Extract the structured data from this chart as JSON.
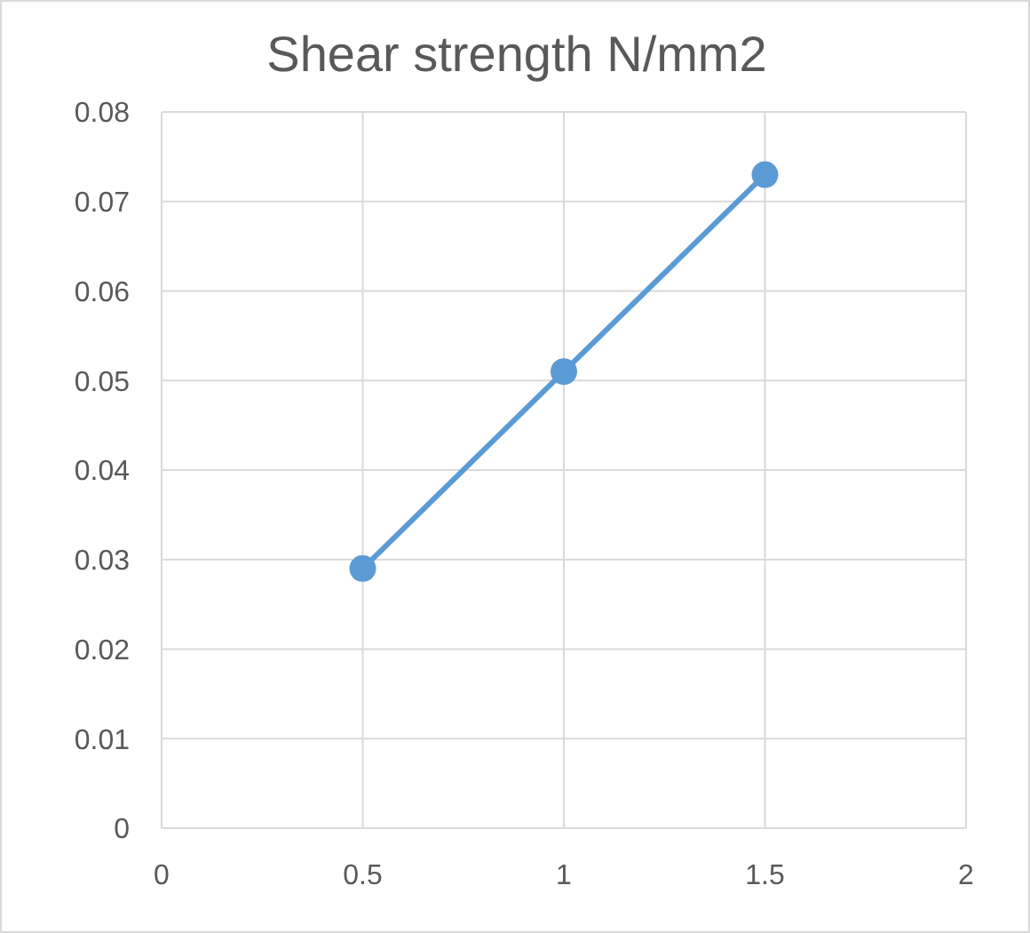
{
  "chart_data": {
    "type": "line",
    "title": "Shear strength N/mm2",
    "x": [
      0.5,
      1,
      1.5
    ],
    "series": [
      {
        "color": "#5b9bd5",
        "values": [
          0.029,
          0.051,
          0.073
        ]
      }
    ],
    "xlim": [
      0,
      2
    ],
    "xticks": [
      0,
      0.5,
      1,
      1.5,
      2
    ],
    "ylim": [
      0,
      0.08
    ],
    "yticks": [
      0,
      0.01,
      0.02,
      0.03,
      0.04,
      0.05,
      0.06,
      0.07,
      0.08
    ],
    "grid": true,
    "marker": "circle",
    "line_style": "solid"
  }
}
